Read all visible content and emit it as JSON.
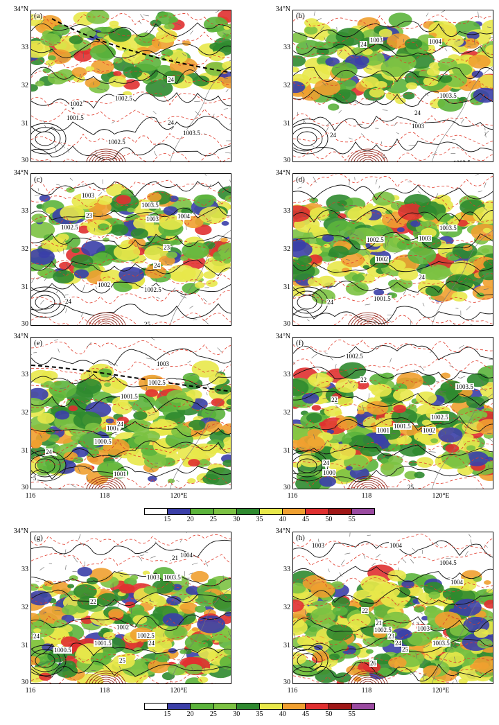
{
  "lat_labels": [
    "34°N",
    "33",
    "32",
    "31",
    "30"
  ],
  "lon_labels": [
    "116",
    "118",
    "120°E"
  ],
  "colorbar": {
    "ticks": [
      "15",
      "20",
      "25",
      "30",
      "35",
      "40",
      "45",
      "50",
      "55"
    ],
    "colors": [
      "#ffffff",
      "#3b3fa8",
      "#5cb43c",
      "#7cc243",
      "#2f8a2f",
      "#e8e84a",
      "#f0a030",
      "#e03030",
      "#a01818",
      "#9a4aa0"
    ]
  },
  "panels": [
    {
      "letter": "(a)",
      "contours": [
        "1002.5",
        "1002",
        "1001.5",
        "1002.5",
        "1003.5"
      ],
      "temps": [
        "24",
        "24"
      ],
      "has_front": true
    },
    {
      "letter": "(b)",
      "contours": [
        "1003",
        "1004",
        "1003.5",
        "1003",
        "1003.5"
      ],
      "temps": [
        "24",
        "24",
        "24"
      ],
      "has_front": false
    },
    {
      "letter": "(c)",
      "contours": [
        "1003",
        "1003.5",
        "1003",
        "1004",
        "1002.5",
        "1002",
        "1002.5"
      ],
      "temps": [
        "23",
        "23",
        "24",
        "24",
        "25"
      ],
      "has_front": false
    },
    {
      "letter": "(d)",
      "contours": [
        "1003.5",
        "1003",
        "1002.5",
        "1002",
        "1001.5"
      ],
      "temps": [
        "24",
        "24"
      ],
      "has_front": false
    },
    {
      "letter": "(e)",
      "contours": [
        "1003",
        "1002.5",
        "1001.5",
        "1001",
        "1000.5",
        "1001"
      ],
      "temps": [
        "24",
        "24",
        "5"
      ],
      "has_front": true
    },
    {
      "letter": "(f)",
      "contours": [
        "1002.5",
        "1003.5",
        "1002.5",
        "1001.5",
        "1001",
        "1002",
        "1000"
      ],
      "temps": [
        "22",
        "22",
        "24",
        "25"
      ],
      "has_front": false
    },
    {
      "letter": "(g)",
      "contours": [
        "1004",
        "1003",
        "1003.5",
        "1002",
        "1002.5",
        "1001.5",
        "1000.5"
      ],
      "temps": [
        "21",
        "22",
        "24",
        "24",
        "25"
      ],
      "has_front": false
    },
    {
      "letter": "(h)",
      "contours": [
        "1003",
        "1004",
        "1004.5",
        "1004",
        "1003",
        "1002.5",
        "1003.5"
      ],
      "temps": [
        "22",
        "21",
        "23",
        "24",
        "25",
        "26"
      ],
      "has_front": false
    }
  ]
}
